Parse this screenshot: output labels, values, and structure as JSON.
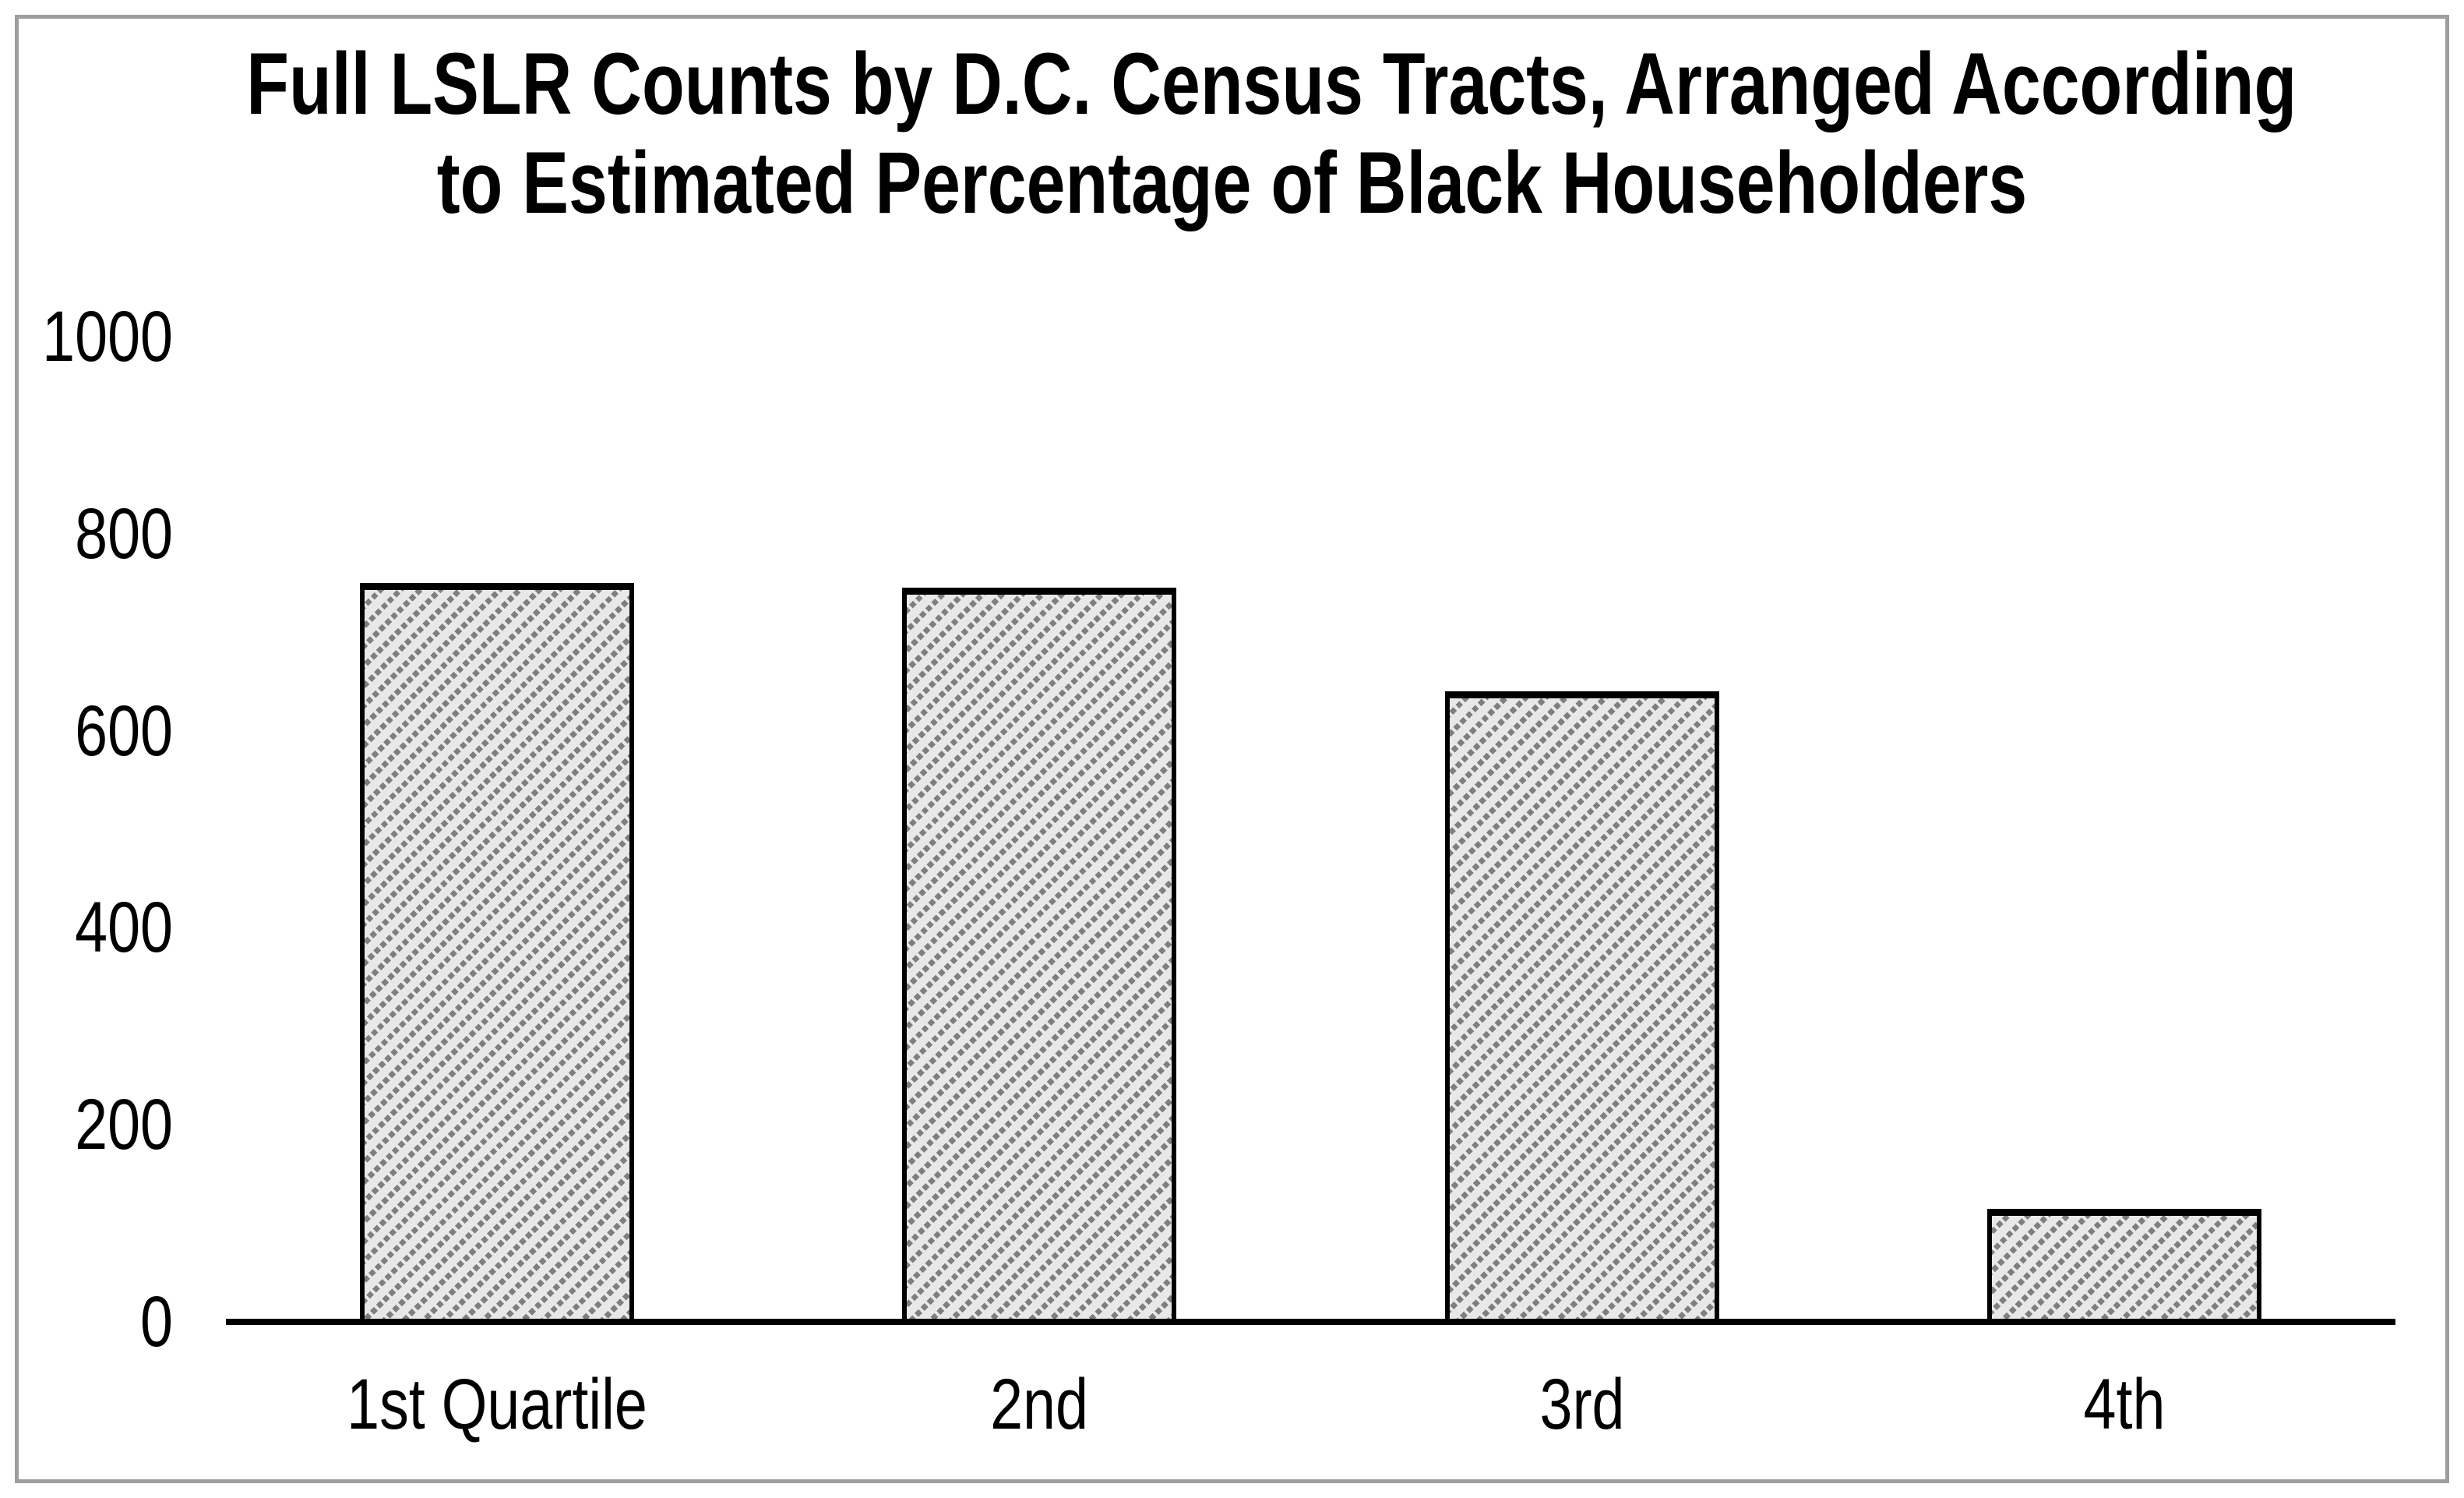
{
  "figure": {
    "title_lines": [
      "Full LSLR Counts by D.C. Census Tracts, Arranged According",
      "to Estimated Percentage of Black Householders"
    ]
  },
  "chart_data": {
    "type": "bar",
    "title": "Full LSLR Counts by D.C. Census Tracts, Arranged According to Estimated Percentage of Black Householders",
    "categories": [
      "1st Quartile",
      "2nd",
      "3rd",
      "4th"
    ],
    "values": [
      750,
      745,
      640,
      115
    ],
    "xlabel": "",
    "ylabel": "",
    "ylim": [
      0,
      1000
    ],
    "yticks": [
      0,
      200,
      400,
      600,
      800,
      1000
    ],
    "grid": false,
    "legend": false,
    "series_name": "Full LSLR Counts",
    "colors": {
      "bar_fill": "#e8e8e8",
      "bar_hatch": "#7f7f7f",
      "bar_border": "#000000",
      "axis": "#000000",
      "text": "#000000",
      "frame_border": "#9e9e9e",
      "background": "#ffffff"
    }
  }
}
